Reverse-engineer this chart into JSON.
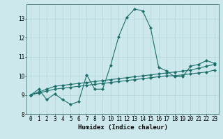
{
  "xlabel": "Humidex (Indice chaleur)",
  "background_color": "#cde8ec",
  "line_color": "#1a6e6a",
  "grid_color": "#b8d8dc",
  "xlim": [
    -0.5,
    23.5
  ],
  "ylim": [
    8,
    13.75
  ],
  "xticks": [
    0,
    1,
    2,
    3,
    4,
    5,
    6,
    7,
    8,
    9,
    10,
    11,
    12,
    13,
    14,
    15,
    16,
    17,
    18,
    19,
    20,
    21,
    22,
    23
  ],
  "yticks": [
    8,
    9,
    10,
    11,
    12,
    13
  ],
  "series1": [
    9.0,
    9.3,
    8.75,
    9.05,
    8.75,
    8.5,
    8.65,
    10.05,
    9.3,
    9.3,
    10.55,
    12.05,
    13.05,
    13.5,
    13.4,
    12.5,
    10.45,
    10.25,
    9.95,
    9.95,
    10.5,
    10.6,
    10.8,
    10.65
  ],
  "series2": [
    9.0,
    9.15,
    9.3,
    9.45,
    9.5,
    9.55,
    9.6,
    9.65,
    9.7,
    9.75,
    9.8,
    9.85,
    9.9,
    9.95,
    10.0,
    10.05,
    10.1,
    10.15,
    10.2,
    10.25,
    10.3,
    10.4,
    10.5,
    10.6
  ],
  "series3": [
    9.0,
    9.1,
    9.2,
    9.3,
    9.35,
    9.4,
    9.45,
    9.5,
    9.55,
    9.6,
    9.65,
    9.7,
    9.75,
    9.8,
    9.85,
    9.9,
    9.95,
    10.0,
    10.0,
    10.05,
    10.1,
    10.15,
    10.2,
    10.3
  ],
  "marker_size": 2.2,
  "line_width": 0.8,
  "xlabel_fontsize": 6.5,
  "tick_fontsize": 5.5
}
